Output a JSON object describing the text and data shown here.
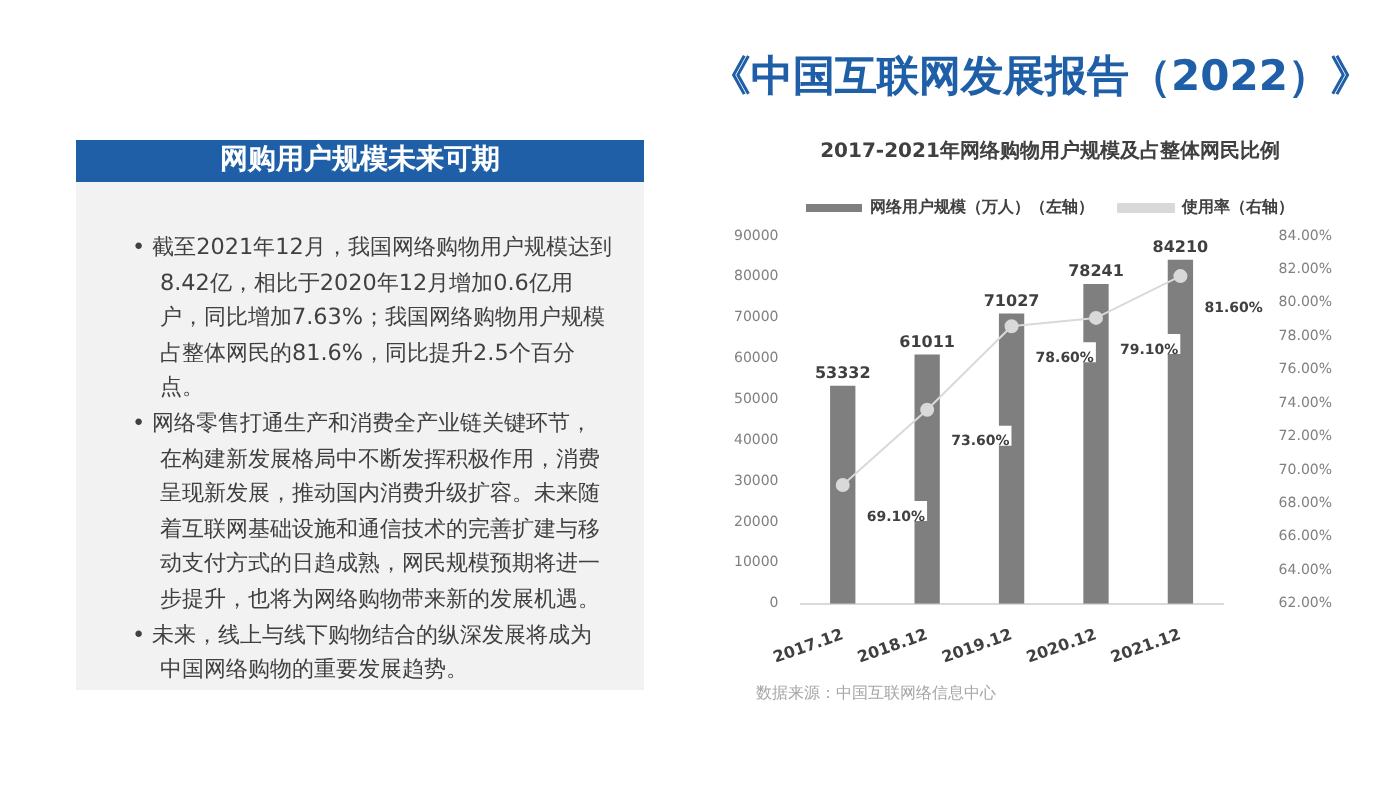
{
  "chart_data": [
    {
      "type": "other",
      "title": "《中国互联网发展报告（2022）》"
    },
    {
      "type": "other",
      "title": "网购用户规模未来可期",
      "annotations": [
        "• 截至2021年12月，我国网络购物用户规模达到8.42亿，相比于2020年12月增加0.6亿用户，同比增加7.63%；我国网络购物用户规模占整体网民的81.6%，同比提升2.5个百分点。",
        "• 网络零售打通生产和消费全产业链关键环节，在构建新发展格局中不断发挥积极作用，消费呈现新发展，推动国内消费升级扩容。未来随着互联网基础设施和通信技术的完善扩建与移动支付方式的日趋成熟，网民规模预期将进一步提升，也将为网络购物带来新的发展机遇。",
        "• 未来，线上与线下购物结合的纵深发展将成为中国网络购物的重要发展趋势。"
      ]
    },
    {
      "type": "bar",
      "title": "2017-2021年网络购物用户规模及占整体网民比例",
      "categories": [
        "2017.12",
        "2018.12",
        "2019.12",
        "2020.12",
        "2021.12"
      ],
      "series": [
        {
          "name": "网络用户规模（万人）（左轴）",
          "type": "bar",
          "color": "#7f7f7f",
          "values": [
            53332,
            61011,
            71027,
            78241,
            84210
          ],
          "value_labels": [
            "53332",
            "61011",
            "71027",
            "78241",
            "84210"
          ]
        },
        {
          "name": "使用率（右轴）",
          "type": "line",
          "axis": "y2",
          "color": "#d9d9d9",
          "marker": "circle",
          "values": [
            69.1,
            73.6,
            78.6,
            79.1,
            81.6
          ],
          "value_labels": [
            "69.10%",
            "73.60%",
            "78.60%",
            "79.10%",
            "81.60%"
          ]
        }
      ],
      "ylim": [
        0,
        90000
      ],
      "yticks": [
        0,
        10000,
        20000,
        30000,
        40000,
        50000,
        60000,
        70000,
        80000,
        90000
      ],
      "y2lim": [
        62,
        84
      ],
      "y2ticks": [
        {
          "value": 62,
          "label": "62.00%"
        },
        {
          "value": 64,
          "label": "64.00%"
        },
        {
          "value": 66,
          "label": "66.00%"
        },
        {
          "value": 68,
          "label": "68.00%"
        },
        {
          "value": 70,
          "label": "70.00%"
        },
        {
          "value": 72,
          "label": "72.00%"
        },
        {
          "value": 74,
          "label": "74.00%"
        },
        {
          "value": 76,
          "label": "76.00%"
        },
        {
          "value": 78,
          "label": "78.00%"
        },
        {
          "value": 80,
          "label": "80.00%"
        },
        {
          "value": 82,
          "label": "82.00%"
        },
        {
          "value": 84,
          "label": "84.00%"
        }
      ],
      "grid": false,
      "legend": "top",
      "annotations": [
        "数据来源：中国互联网络信息中心"
      ]
    }
  ]
}
